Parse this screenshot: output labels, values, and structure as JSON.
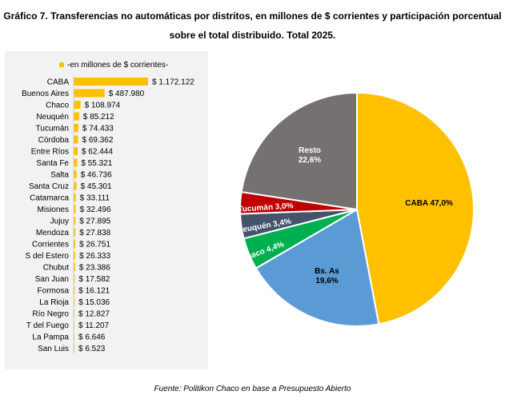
{
  "title_line1": "Gráfico 7. Transferencias no automáticas por distritos, en millones de $ corrientes y participación porcentual",
  "title_line2": "sobre el total distribuido. Total 2025.",
  "source": "Fuente: Politikon Chaco en base a Presupuesto Abierto",
  "colors": {
    "bar": "#ffc000",
    "panel": "#f2f2f2"
  },
  "chart_data": [
    {
      "type": "bar",
      "orientation": "horizontal",
      "legend": "-en millones de $ corrientes-",
      "categories": [
        "CABA",
        "Buenos Aires",
        "Chaco",
        "Neuquén",
        "Tucumán",
        "Córdoba",
        "Entre Ríos",
        "Santa Fe",
        "Salta",
        "Santa Cruz",
        "Catamarca",
        "Misiones",
        "Jujuy",
        "Mendoza",
        "Corrientes",
        "S del Estero",
        "Chubut",
        "San Juan",
        "Formosa",
        "La Rioja",
        "Río Negro",
        "T del Fuego",
        "La Pampa",
        "San Luis"
      ],
      "values": [
        1172122,
        487980,
        108974,
        85212,
        74433,
        69362,
        62444,
        55321,
        46736,
        45301,
        33111,
        32496,
        27895,
        27838,
        26751,
        26333,
        23386,
        17582,
        16121,
        15036,
        12827,
        11207,
        6646,
        6523
      ],
      "data_labels": [
        "$ 1.172.122",
        "$ 487.980",
        "$ 108.974",
        "$ 85.212",
        "$ 74.433",
        "$ 69.362",
        "$ 62.444",
        "$ 55.321",
        "$ 46.736",
        "$ 45.301",
        "$ 33.111",
        "$ 32.496",
        "$ 27.895",
        "$ 27.838",
        "$ 26.751",
        "$ 26.333",
        "$ 23.386",
        "$ 17.582",
        "$ 16.121",
        "$ 15.036",
        "$ 12.827",
        "$ 11.207",
        "$ 6.646",
        "$ 6.523"
      ]
    },
    {
      "type": "pie",
      "slices": [
        {
          "label": "CABA 47,0%",
          "value": 47.0,
          "color": "#ffc000"
        },
        {
          "label": "Bs. As\n19,6%",
          "value": 19.6,
          "color": "#5b9bd5"
        },
        {
          "label": "Chaco 4,4%",
          "value": 4.4,
          "color": "#00b050"
        },
        {
          "label": "Neuquén 3,4%",
          "value": 3.4,
          "color": "#44546a"
        },
        {
          "label": "Tucumán 3,0%",
          "value": 3.0,
          "color": "#c00000"
        },
        {
          "label": "Resto\n22,6%",
          "value": 22.6,
          "color": "#767171"
        }
      ]
    }
  ]
}
